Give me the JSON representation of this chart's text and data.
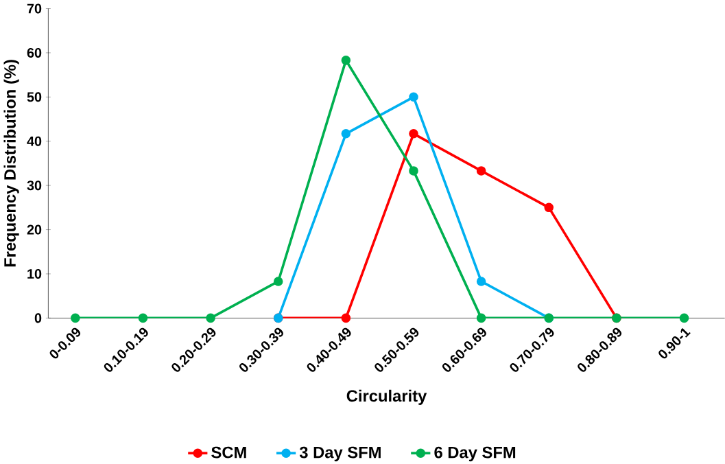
{
  "chart_data": {
    "type": "line",
    "xlabel": "Circularity",
    "ylabel": "Frequency Distribution (%)",
    "categories": [
      "0-0.09",
      "0.10-0.19",
      "0.20-0.29",
      "0.30-0.39",
      "0.40-0.49",
      "0.50-0.59",
      "0.60-0.69",
      "0.70-0.79",
      "0.80-0.89",
      "0.90-1"
    ],
    "series": [
      {
        "name": "SCM",
        "color": "#ff0000",
        "values": [
          null,
          null,
          null,
          0,
          0,
          41.7,
          33.3,
          25,
          0,
          null
        ]
      },
      {
        "name": "3 Day SFM",
        "color": "#00b0f0",
        "values": [
          null,
          null,
          null,
          0,
          41.7,
          50,
          8.3,
          0,
          null,
          null
        ]
      },
      {
        "name": "6 Day SFM",
        "color": "#00b050",
        "values": [
          0,
          0,
          0,
          8.3,
          58.3,
          33.3,
          0,
          0,
          0,
          0
        ]
      }
    ],
    "ylim": [
      0,
      70
    ],
    "yticks": [
      0,
      10,
      20,
      30,
      40,
      50,
      60,
      70
    ],
    "grid": false,
    "legend": "bottom",
    "marker": "circle",
    "line_style": "solid"
  }
}
